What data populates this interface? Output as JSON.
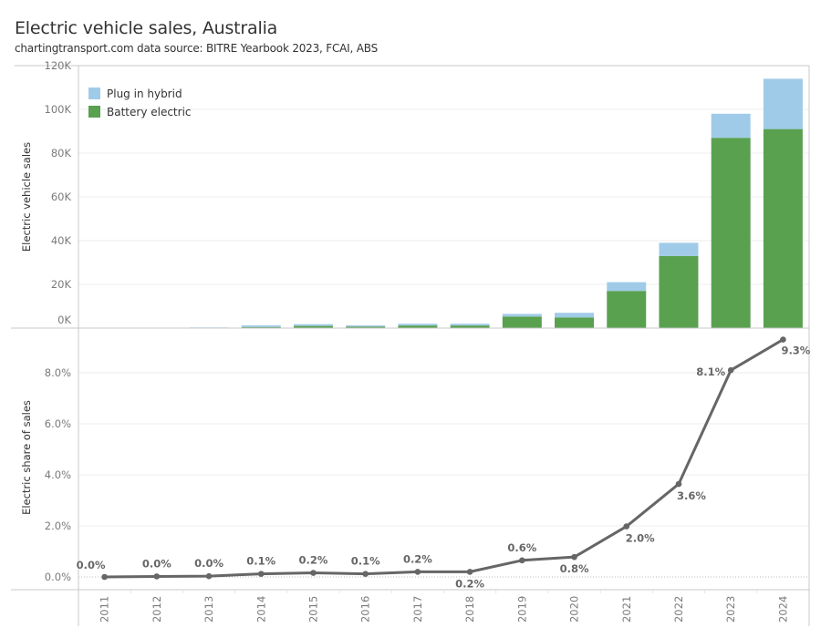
{
  "header": {
    "title": "Electric vehicle sales, Australia",
    "subtitle": "chartingtransport.com  data source: BITRE Yearbook 2023, FCAI, ABS"
  },
  "colors": {
    "battery_electric": "#59a14f",
    "plug_in_hybrid": "#a0cbe8",
    "line": "#666666",
    "grid": "#ececec",
    "axis": "#c8c8c8"
  },
  "chart_data": [
    {
      "type": "bar",
      "stacked": true,
      "title": "",
      "xlabel": "",
      "ylabel": "Electric vehicle sales",
      "categories": [
        "2011",
        "2012",
        "2013",
        "2014",
        "2015",
        "2016",
        "2017",
        "2018",
        "2019",
        "2020",
        "2021",
        "2022",
        "2023",
        "2024"
      ],
      "series": [
        {
          "name": "Battery electric",
          "values": [
            50,
            0,
            0,
            500,
            1000,
            700,
            1200,
            1200,
            5300,
            4900,
            17000,
            33000,
            87000,
            91000
          ]
        },
        {
          "name": "Plug in hybrid",
          "values": [
            0,
            200,
            300,
            800,
            800,
            550,
            800,
            800,
            1200,
            2100,
            4000,
            6000,
            11000,
            23000
          ]
        }
      ],
      "ylim": [
        0,
        120000
      ],
      "yticks": [
        0,
        20000,
        40000,
        60000,
        80000,
        100000,
        120000
      ],
      "ytick_labels": [
        "0K",
        "20K",
        "40K",
        "60K",
        "80K",
        "100K",
        "120K"
      ],
      "legend": {
        "position": "top-left",
        "entries": [
          "Plug in hybrid",
          "Battery electric"
        ]
      },
      "grid": true
    },
    {
      "type": "line",
      "title": "",
      "xlabel": "",
      "ylabel": "Electric share of sales",
      "x": [
        "2011",
        "2012",
        "2013",
        "2014",
        "2015",
        "2016",
        "2017",
        "2018",
        "2019",
        "2020",
        "2021",
        "2022",
        "2023",
        "2024"
      ],
      "values": [
        0.0,
        0.02,
        0.03,
        0.12,
        0.16,
        0.12,
        0.2,
        0.2,
        0.65,
        0.78,
        1.98,
        3.64,
        8.1,
        9.3
      ],
      "data_labels": [
        "0.0%",
        "0.0%",
        "0.0%",
        "0.1%",
        "0.2%",
        "0.1%",
        "0.2%",
        "0.2%",
        "0.6%",
        "0.8%",
        "2.0%",
        "3.6%",
        "8.1%",
        "9.3%"
      ],
      "ylim": [
        0,
        9.5
      ],
      "yticks": [
        0,
        2,
        4,
        6,
        8
      ],
      "ytick_labels": [
        "0.0%",
        "2.0%",
        "4.0%",
        "6.0%",
        "8.0%"
      ],
      "grid": true
    }
  ]
}
